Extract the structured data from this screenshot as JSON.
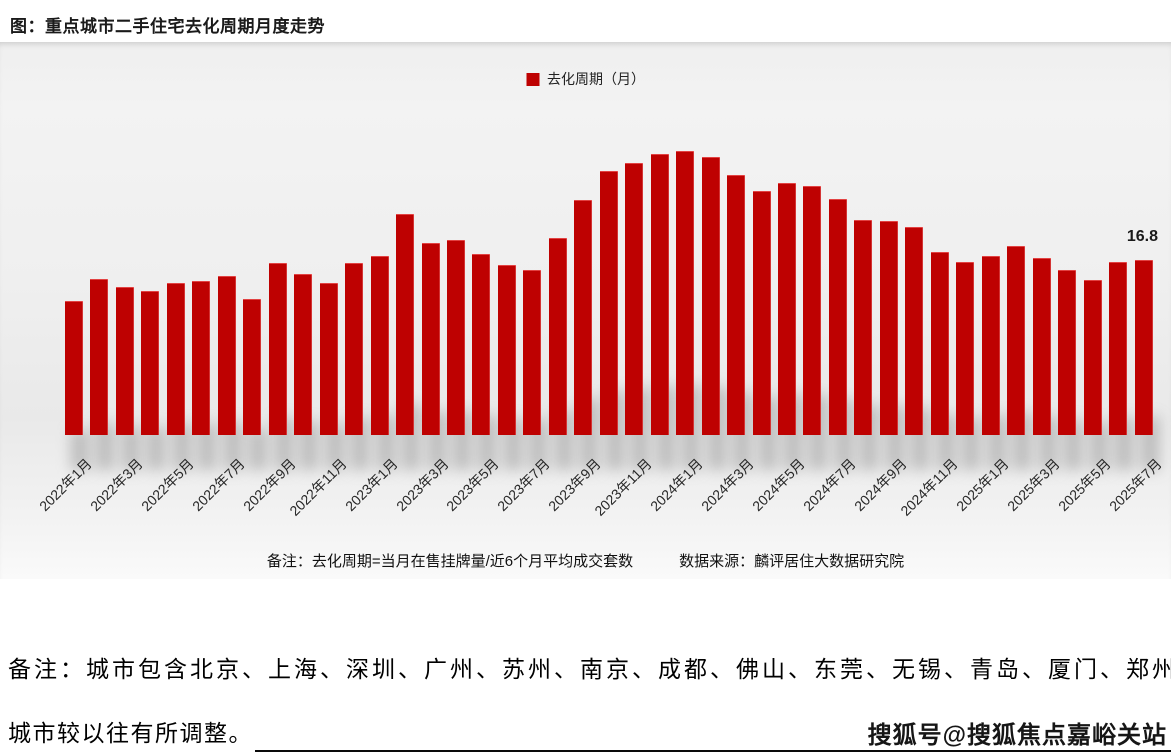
{
  "title": "图：重点城市二手住宅去化周期月度走势",
  "legend": {
    "label": "去化周期（月）",
    "color": "#BE0101"
  },
  "last_value_label": "16.8",
  "footnote": {
    "note": "备注：去化周期=当月在售挂牌量/近6个月平均成交套数",
    "source": "数据来源：麟评居住大数据研究院"
  },
  "bottom_note": {
    "line1": "备注：城市包含北京、上海、深圳、广州、苏州、南京、成都、佛山、东莞、无锡、青岛、厦门、郑州，",
    "line2": "城市较以往有所调整。"
  },
  "watermark": "搜狐号@搜狐焦点嘉峪关站",
  "chart_data": {
    "type": "bar",
    "title": "图：重点城市二手住宅去化周期月度走势",
    "legend_entries": [
      "去化周期（月）"
    ],
    "legend_position": "top-center",
    "bar_color": "#BE0101",
    "grid": false,
    "ylim": [
      0,
      28
    ],
    "xlabel": "",
    "ylabel": "去化周期（月）",
    "categories": [
      "2022年1月",
      "2022年2月",
      "2022年3月",
      "2022年4月",
      "2022年5月",
      "2022年6月",
      "2022年7月",
      "2022年8月",
      "2022年9月",
      "2022年10月",
      "2022年11月",
      "2022年12月",
      "2023年1月",
      "2023年2月",
      "2023年3月",
      "2023年4月",
      "2023年5月",
      "2023年6月",
      "2023年7月",
      "2023年8月",
      "2023年9月",
      "2023年10月",
      "2023年11月",
      "2023年12月",
      "2024年1月",
      "2024年2月",
      "2024年3月",
      "2024年4月",
      "2024年5月",
      "2024年6月",
      "2024年7月",
      "2024年8月",
      "2024年9月",
      "2024年10月",
      "2024年11月",
      "2024年12月",
      "2025年1月",
      "2025年2月",
      "2025年3月",
      "2025年4月",
      "2025年5月",
      "2025年6月",
      "2025年7月"
    ],
    "values": [
      12.9,
      15.0,
      14.2,
      13.8,
      14.6,
      14.8,
      15.3,
      13.1,
      16.5,
      15.5,
      14.6,
      16.5,
      17.2,
      21.2,
      18.4,
      18.7,
      17.4,
      16.3,
      15.8,
      18.9,
      22.6,
      25.3,
      26.1,
      27.0,
      27.3,
      26.7,
      25.0,
      23.4,
      24.2,
      23.9,
      22.7,
      20.6,
      20.5,
      20.0,
      17.6,
      16.6,
      17.2,
      18.1,
      17.0,
      15.8,
      14.9,
      16.6,
      16.8
    ],
    "x_tick_labels": [
      "2022年1月",
      "2022年3月",
      "2022年5月",
      "2022年7月",
      "2022年9月",
      "2022年11月",
      "2023年1月",
      "2023年3月",
      "2023年5月",
      "2023年7月",
      "2023年9月",
      "2023年11月",
      "2024年1月",
      "2024年3月",
      "2024年5月",
      "2024年7月",
      "2024年9月",
      "2024年11月",
      "2025年1月",
      "2025年3月",
      "2025年5月",
      "2025年7月"
    ],
    "annotation": {
      "text": "16.8",
      "category": "2025年7月"
    }
  }
}
